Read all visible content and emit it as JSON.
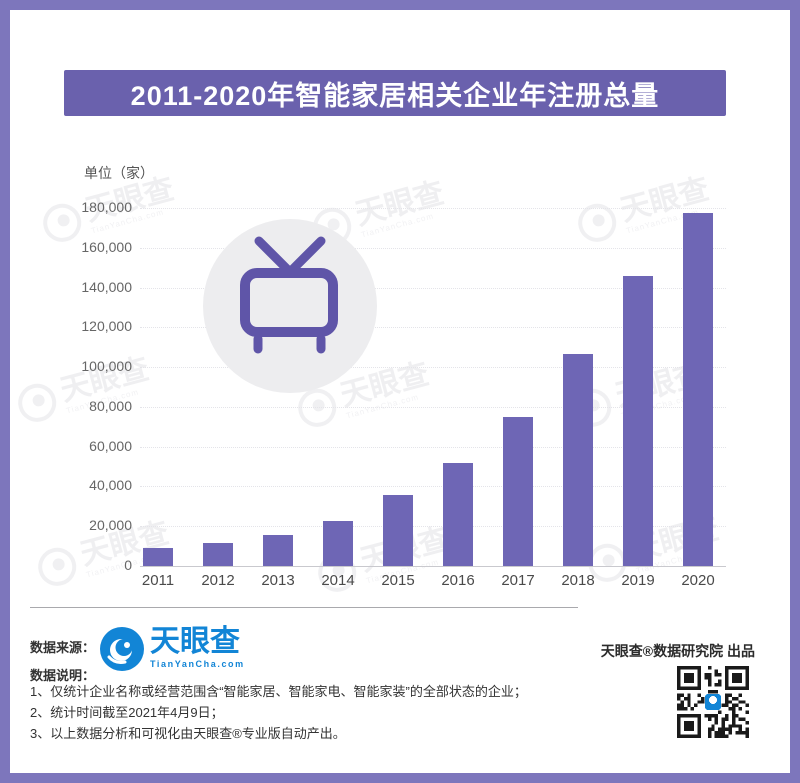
{
  "banner": {
    "title": "2011-2020年智能家居相关企业年注册总量",
    "bg_color": "#6a61ad"
  },
  "chart_data": {
    "type": "bar",
    "title": "2011-2020年智能家居相关企业年注册总量",
    "unit_label": "单位（家）",
    "categories": [
      "2011",
      "2012",
      "2013",
      "2014",
      "2015",
      "2016",
      "2017",
      "2018",
      "2019",
      "2020"
    ],
    "values": [
      9000,
      11500,
      15500,
      22500,
      35500,
      52000,
      75000,
      106500,
      146000,
      177500
    ],
    "ylim": [
      0,
      180000
    ],
    "ytick_step": 20000,
    "bar_color": "#6e66b5",
    "grid": true,
    "legend": "none"
  },
  "overlay_icon": {
    "name": "tv-icon",
    "circle_color": "#ededef",
    "icon_color": "#5f55a8"
  },
  "watermark": {
    "text": "天眼查",
    "subtext": "TianYanCha.com"
  },
  "footer": {
    "source_label": "数据来源：",
    "logo": {
      "name": "天眼查",
      "domain": "TianYanCha.com",
      "color": "#1285d6"
    },
    "notes_label": "数据说明：",
    "notes": [
      "1、仅统计企业名称或经营范围含“智能家居、智能家电、智能家装”的全部状态的企业；",
      "2、统计时间截至2021年4月9日；",
      "3、以上数据分析和可视化由天眼查®专业版自动产出。"
    ],
    "publisher": "天眼查®数据研究院 出品"
  }
}
